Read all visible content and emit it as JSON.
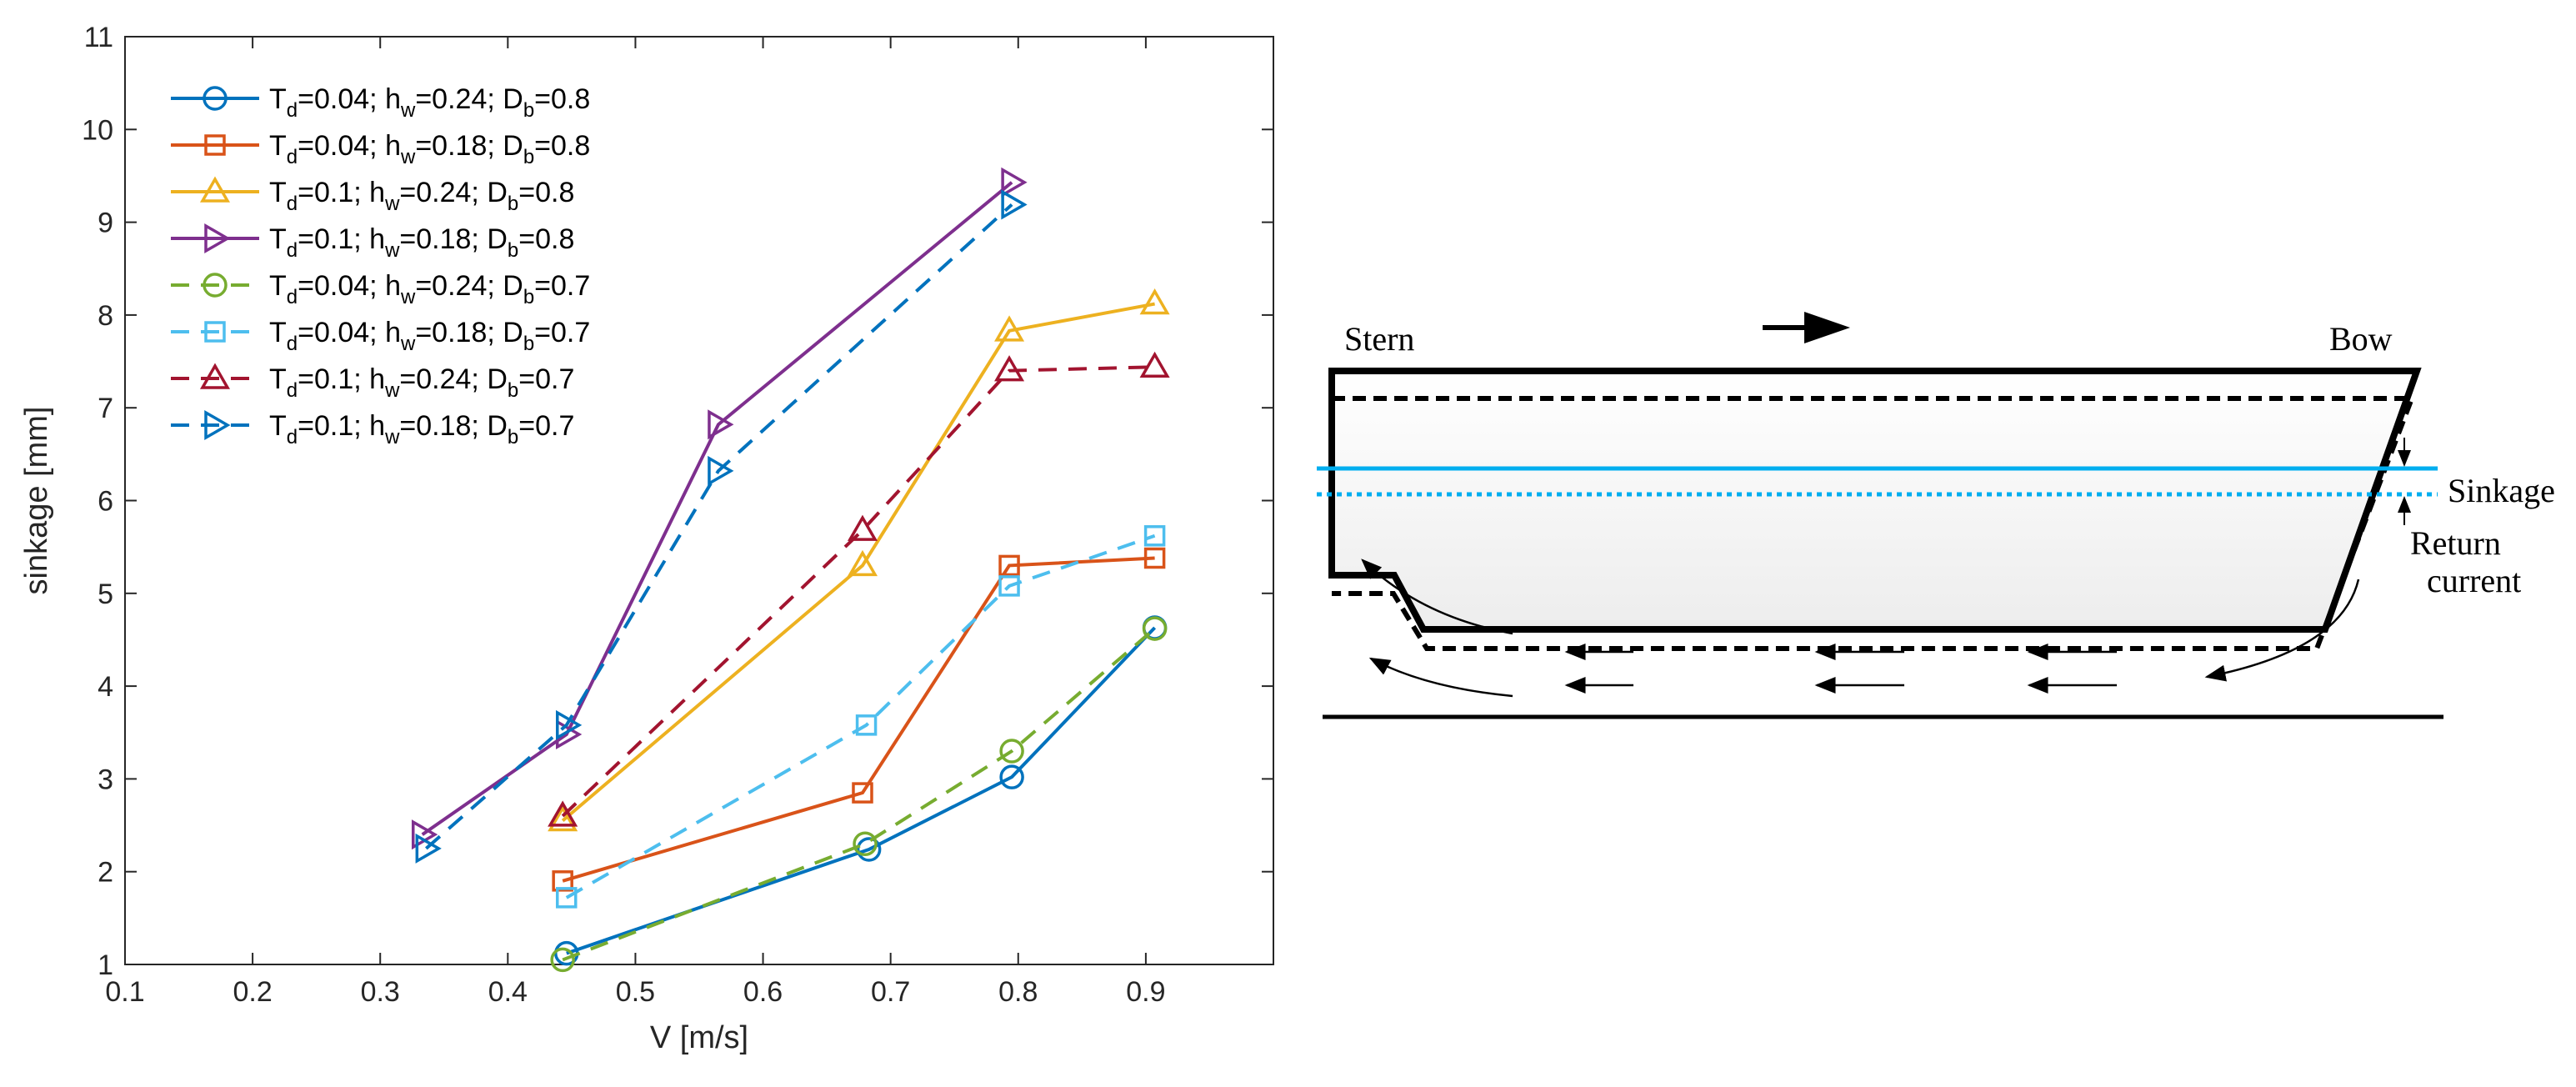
{
  "chart_data": {
    "type": "line",
    "title": "",
    "xlabel": "V [m/s]",
    "ylabel": "sinkage [mm]",
    "xlim": [
      0.1,
      1.0
    ],
    "ylim": [
      1,
      11
    ],
    "xticks": [
      0.1,
      0.2,
      0.3,
      0.4,
      0.5,
      0.6,
      0.7,
      0.8,
      0.9
    ],
    "yticks": [
      1,
      2,
      3,
      4,
      5,
      6,
      7,
      8,
      9,
      10,
      11
    ],
    "legend_position": "top-left",
    "series": [
      {
        "name": "T_d=0.04; h_w=0.24; D_b=0.8",
        "legend": {
          "a": "T",
          "as": "d",
          "b": "=0.04; h",
          "bs": "w",
          "c": "=0.24; D",
          "cs": "b",
          "d": "=0.8"
        },
        "color": "#0072BD",
        "dash": "solid",
        "marker": "circle",
        "x": [
          0.446,
          0.683,
          0.795,
          0.907
        ],
        "y": [
          1.12,
          2.24,
          3.02,
          4.63
        ]
      },
      {
        "name": "T_d=0.04; h_w=0.18; D_b=0.8",
        "legend": {
          "a": "T",
          "as": "d",
          "b": "=0.04; h",
          "bs": "w",
          "c": "=0.18; D",
          "cs": "b",
          "d": "=0.8"
        },
        "color": "#D95319",
        "dash": "solid",
        "marker": "square",
        "x": [
          0.443,
          0.678,
          0.793,
          0.907
        ],
        "y": [
          1.9,
          2.85,
          5.3,
          5.38
        ]
      },
      {
        "name": "T_d=0.1; h_w=0.24; D_b=0.8",
        "legend": {
          "a": "T",
          "as": "d",
          "b": "=0.1; h",
          "bs": "w",
          "c": "=0.24; D",
          "cs": "b",
          "d": "=0.8"
        },
        "color": "#EDB120",
        "dash": "solid",
        "marker": "triangle-up",
        "x": [
          0.443,
          0.678,
          0.793,
          0.907
        ],
        "y": [
          2.55,
          5.3,
          7.83,
          8.12
        ]
      },
      {
        "name": "T_d=0.1; h_w=0.18; D_b=0.8",
        "legend": {
          "a": "T",
          "as": "d",
          "b": "=0.1; h",
          "bs": "w",
          "c": "=0.18; D",
          "cs": "b",
          "d": "=0.8"
        },
        "color": "#7E2F8E",
        "dash": "solid",
        "marker": "triangle-right",
        "x": [
          0.333,
          0.446,
          0.565,
          0.795
        ],
        "y": [
          2.4,
          3.48,
          6.82,
          9.43
        ]
      },
      {
        "name": "T_d=0.04; h_w=0.24; D_b=0.7",
        "legend": {
          "a": "T",
          "as": "d",
          "b": "=0.04; h",
          "bs": "w",
          "c": "=0.24; D",
          "cs": "b",
          "d": "=0.7"
        },
        "color": "#77AC30",
        "dash": "dashed",
        "marker": "circle",
        "x": [
          0.443,
          0.68,
          0.795,
          0.907
        ],
        "y": [
          1.05,
          2.3,
          3.3,
          4.62
        ]
      },
      {
        "name": "T_d=0.04; h_w=0.18; D_b=0.7",
        "legend": {
          "a": "T",
          "as": "d",
          "b": "=0.04; h",
          "bs": "w",
          "c": "=0.18; D",
          "cs": "b",
          "d": "=0.7"
        },
        "color": "#4DBEEE",
        "dash": "dashed",
        "marker": "square",
        "x": [
          0.446,
          0.681,
          0.793,
          0.907
        ],
        "y": [
          1.72,
          3.58,
          5.08,
          5.62
        ]
      },
      {
        "name": "T_d=0.1; h_w=0.24; D_b=0.7",
        "legend": {
          "a": "T",
          "as": "d",
          "b": "=0.1; h",
          "bs": "w",
          "c": "=0.24; D",
          "cs": "b",
          "d": "=0.7"
        },
        "color": "#A2142F",
        "dash": "dashed",
        "marker": "triangle-up",
        "x": [
          0.443,
          0.678,
          0.793,
          0.907
        ],
        "y": [
          2.6,
          5.68,
          7.4,
          7.44
        ]
      },
      {
        "name": "T_d=0.1; h_w=0.18; D_b=0.7",
        "legend": {
          "a": "T",
          "as": "d",
          "b": "=0.1; h",
          "bs": "w",
          "c": "=0.18; D",
          "cs": "b",
          "d": "=0.7"
        },
        "color": "#0072BD",
        "dash": "dashed",
        "marker": "triangle-right",
        "x": [
          0.336,
          0.446,
          0.565,
          0.795
        ],
        "y": [
          2.25,
          3.58,
          6.32,
          9.19
        ]
      }
    ]
  },
  "diagram": {
    "labels": {
      "stern": "Stern",
      "bow": "Bow",
      "sinkage": "Sinkage",
      "return_line1": "Return",
      "return_line2": "current"
    },
    "colors": {
      "hull": "#000000",
      "water_initial": "#00AEEF",
      "water_sunk": "#00AEEF",
      "hull_fill": "#EDEDED"
    }
  }
}
